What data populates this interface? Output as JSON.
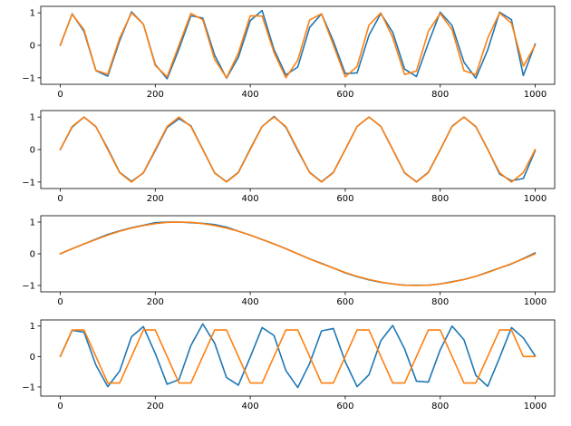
{
  "chart_data": [
    {
      "type": "line",
      "xlim": [
        0,
        1000
      ],
      "ylim": [
        -1.2,
        1.2
      ],
      "xticks": [
        "0",
        "200",
        "400",
        "600",
        "800",
        "1000"
      ],
      "yticks": [
        "1",
        "0",
        "−1"
      ],
      "grid": false,
      "x": [
        0,
        25,
        50,
        75,
        100,
        125,
        150,
        175,
        200,
        225,
        250,
        275,
        300,
        325,
        350,
        375,
        400,
        425,
        450,
        475,
        500,
        525,
        550,
        575,
        600,
        625,
        650,
        675,
        700,
        725,
        750,
        775,
        800,
        825,
        850,
        875,
        900,
        925,
        950,
        975,
        1000
      ],
      "series": [
        {
          "color": "#1f77b4",
          "values": [
            0.0,
            0.97,
            0.43,
            -0.78,
            -0.95,
            0.14,
            1.03,
            0.65,
            -0.59,
            -1.03,
            -0.11,
            0.91,
            0.84,
            -0.3,
            -1.01,
            -0.37,
            0.76,
            1.07,
            -0.13,
            -0.91,
            -0.67,
            0.55,
            0.97,
            0.13,
            -0.87,
            -0.85,
            0.31,
            0.98,
            0.4,
            -0.73,
            -0.96,
            0.07,
            1.02,
            0.61,
            -0.52,
            -1.01,
            -0.14,
            1.02,
            0.79,
            -0.93,
            0.04
          ]
        },
        {
          "color": "#ff7f0e",
          "values": [
            0.0,
            0.96,
            0.48,
            -0.77,
            -0.89,
            0.22,
            1.0,
            0.65,
            -0.62,
            -0.97,
            0.01,
            0.98,
            0.79,
            -0.43,
            -1.0,
            -0.24,
            0.91,
            0.9,
            -0.22,
            -1.0,
            -0.46,
            0.78,
            0.97,
            0.01,
            -0.97,
            -0.65,
            0.62,
            1.0,
            0.24,
            -0.9,
            -0.79,
            0.43,
            0.98,
            0.48,
            -0.78,
            -0.9,
            0.22,
            1.0,
            0.68,
            -0.64,
            0.0
          ]
        }
      ]
    },
    {
      "type": "line",
      "xlim": [
        0,
        1000
      ],
      "ylim": [
        -1.2,
        1.2
      ],
      "xticks": [
        "0",
        "200",
        "400",
        "600",
        "800",
        "1000"
      ],
      "yticks": [
        "1",
        "0",
        "−1"
      ],
      "grid": false,
      "x": [
        0,
        25,
        50,
        75,
        100,
        125,
        150,
        175,
        200,
        225,
        250,
        275,
        300,
        325,
        350,
        375,
        400,
        425,
        450,
        475,
        500,
        525,
        550,
        575,
        600,
        625,
        650,
        675,
        700,
        725,
        750,
        775,
        800,
        825,
        850,
        875,
        900,
        925,
        950,
        975,
        1000
      ],
      "series": [
        {
          "color": "#1f77b4",
          "values": [
            0.0,
            0.69,
            1.0,
            0.7,
            0.03,
            -0.7,
            -0.98,
            -0.72,
            -0.03,
            0.68,
            0.95,
            0.73,
            0.01,
            -0.72,
            -0.99,
            -0.7,
            0.02,
            0.71,
            1.02,
            0.69,
            -0.03,
            -0.7,
            -0.99,
            -0.7,
            0.0,
            0.71,
            1.0,
            0.71,
            0.0,
            -0.72,
            -0.99,
            -0.7,
            -0.01,
            0.72,
            1.0,
            0.7,
            0.01,
            -0.75,
            -0.96,
            -0.89,
            -0.03
          ]
        },
        {
          "color": "#ff7f0e",
          "values": [
            0.0,
            0.71,
            1.0,
            0.71,
            0.0,
            -0.71,
            -1.0,
            -0.71,
            0.0,
            0.71,
            1.0,
            0.71,
            0.0,
            -0.71,
            -1.0,
            -0.71,
            0.0,
            0.71,
            1.0,
            0.71,
            0.0,
            -0.71,
            -1.0,
            -0.71,
            0.0,
            0.71,
            1.0,
            0.71,
            0.0,
            -0.71,
            -1.0,
            -0.71,
            0.0,
            0.71,
            1.0,
            0.71,
            0.0,
            -0.71,
            -1.0,
            -0.71,
            0.0
          ]
        }
      ]
    },
    {
      "type": "line",
      "xlim": [
        0,
        1000
      ],
      "ylim": [
        -1.2,
        1.2
      ],
      "xticks": [
        "0",
        "200",
        "400",
        "600",
        "800",
        "1000"
      ],
      "yticks": [
        "1",
        "0",
        "−1"
      ],
      "grid": false,
      "x": [
        0,
        25,
        50,
        75,
        100,
        125,
        150,
        175,
        200,
        225,
        250,
        275,
        300,
        325,
        350,
        375,
        400,
        425,
        450,
        475,
        500,
        525,
        550,
        575,
        600,
        625,
        650,
        675,
        700,
        725,
        750,
        775,
        800,
        825,
        850,
        875,
        900,
        925,
        950,
        975,
        1000
      ],
      "series": [
        {
          "color": "#1f77b4",
          "values": [
            0.0,
            0.16,
            0.31,
            0.46,
            0.61,
            0.72,
            0.82,
            0.9,
            0.98,
            1.0,
            1.0,
            0.98,
            0.96,
            0.92,
            0.84,
            0.71,
            0.59,
            0.45,
            0.31,
            0.16,
            0.0,
            -0.16,
            -0.3,
            -0.45,
            -0.6,
            -0.72,
            -0.82,
            -0.9,
            -0.95,
            -0.99,
            -0.99,
            -0.99,
            -0.95,
            -0.88,
            -0.81,
            -0.71,
            -0.58,
            -0.45,
            -0.32,
            -0.15,
            0.03
          ]
        },
        {
          "color": "#ff7f0e",
          "values": [
            0.0,
            0.16,
            0.31,
            0.45,
            0.59,
            0.71,
            0.81,
            0.89,
            0.95,
            0.99,
            1.0,
            0.99,
            0.95,
            0.89,
            0.81,
            0.71,
            0.59,
            0.45,
            0.31,
            0.16,
            0.0,
            -0.16,
            -0.31,
            -0.45,
            -0.59,
            -0.71,
            -0.81,
            -0.89,
            -0.95,
            -0.99,
            -1.0,
            -0.99,
            -0.95,
            -0.89,
            -0.81,
            -0.71,
            -0.59,
            -0.45,
            -0.31,
            -0.16,
            0.0
          ]
        }
      ]
    },
    {
      "type": "line",
      "xlim": [
        0,
        1000
      ],
      "ylim": [
        -1.3,
        1.2
      ],
      "xticks": [
        "0",
        "200",
        "400",
        "600",
        "800",
        "1000"
      ],
      "yticks": [
        "1",
        "0",
        "−1"
      ],
      "grid": false,
      "x": [
        0,
        25,
        50,
        75,
        100,
        125,
        150,
        175,
        200,
        225,
        250,
        275,
        300,
        325,
        350,
        375,
        400,
        425,
        450,
        475,
        500,
        525,
        550,
        575,
        600,
        625,
        650,
        675,
        700,
        725,
        750,
        775,
        800,
        825,
        850,
        875,
        900,
        925,
        950,
        975,
        1000
      ],
      "series": [
        {
          "color": "#1f77b4",
          "values": [
            0.0,
            0.86,
            0.8,
            -0.28,
            -0.99,
            -0.48,
            0.65,
            0.98,
            0.1,
            -0.91,
            -0.76,
            0.36,
            1.07,
            0.44,
            -0.69,
            -0.94,
            -0.02,
            0.95,
            0.69,
            -0.46,
            -1.02,
            -0.23,
            0.84,
            0.92,
            -0.17,
            -0.99,
            -0.6,
            0.52,
            1.02,
            0.25,
            -0.81,
            -0.84,
            0.22,
            1.0,
            0.55,
            -0.62,
            -0.98,
            -0.04,
            0.95,
            0.61,
            0.02
          ]
        },
        {
          "color": "#ff7f0e",
          "values": [
            0.0,
            0.87,
            0.87,
            0.0,
            -0.87,
            -0.87,
            0.0,
            0.87,
            0.87,
            0.0,
            -0.87,
            -0.87,
            0.0,
            0.87,
            0.87,
            0.0,
            -0.87,
            -0.87,
            0.0,
            0.87,
            0.87,
            0.0,
            -0.87,
            -0.87,
            0.0,
            0.87,
            0.87,
            0.0,
            -0.87,
            -0.87,
            0.0,
            0.87,
            0.87,
            0.0,
            -0.87,
            -0.87,
            0.0,
            0.87,
            0.87,
            0.0,
            0.0
          ]
        }
      ]
    }
  ]
}
